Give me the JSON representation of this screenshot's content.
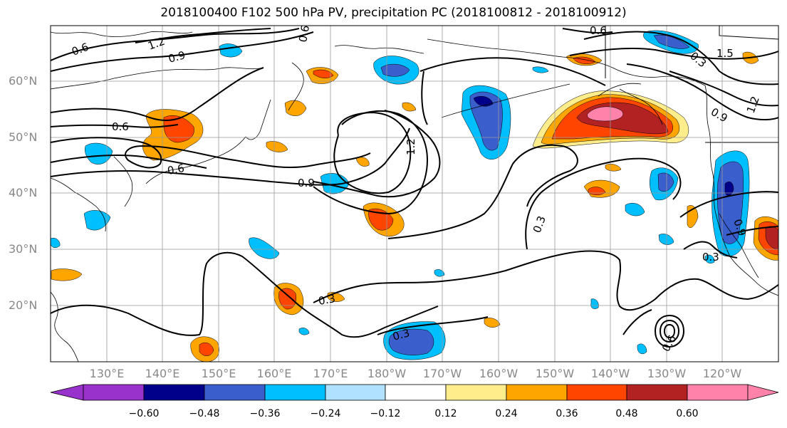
{
  "title": "2018100400 F102 500 hPa PV, precipitation PC (2018100812 - 2018100912)",
  "lat_labels": [
    "60°N",
    "50°N",
    "40°N",
    "30°N",
    "20°N"
  ],
  "lon_labels": [
    "130°E",
    "140°E",
    "150°E",
    "160°E",
    "170°E",
    "180°W",
    "170°W",
    "160°W",
    "150°W",
    "140°W",
    "130°W",
    "120°W"
  ],
  "colorbar": {
    "labels": [
      "−0.60",
      "−0.48",
      "−0.36",
      "−0.24",
      "−0.12",
      "0.12",
      "0.24",
      "0.36",
      "0.48",
      "0.60"
    ],
    "colors": [
      "#9932cc",
      "#00008b",
      "#3a5fcd",
      "#00bfff",
      "#b0e2ff",
      "#ffffff",
      "#ffec8b",
      "#ffa500",
      "#ff4500",
      "#b22222",
      "#ff82ab"
    ]
  },
  "contour_labels": [
    "0.6",
    "1.2",
    "0.9",
    "0.6",
    "0.6",
    "0.6",
    "0.9",
    "1.2",
    "0.3",
    "0.3",
    "0.3",
    "0.3",
    "1.5",
    "0.6",
    "0.3",
    "1.2",
    "0.9",
    "0.9",
    "0.6"
  ]
}
